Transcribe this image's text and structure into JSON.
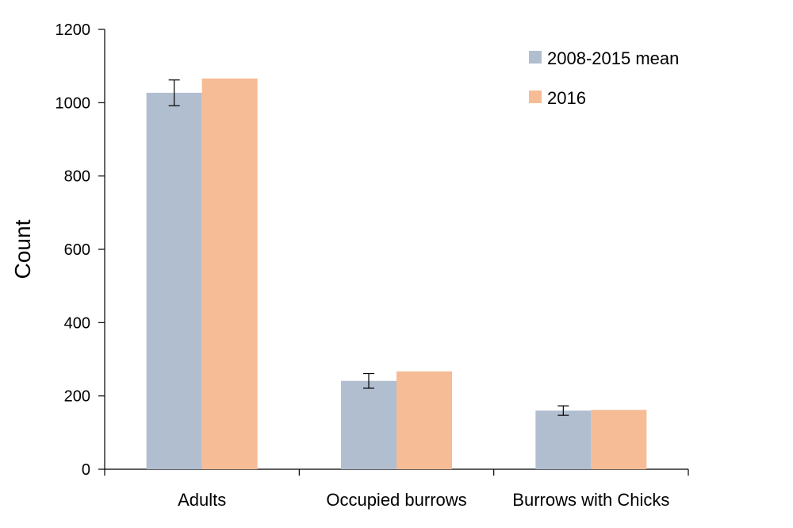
{
  "chart_data": {
    "type": "bar",
    "title": "",
    "xlabel": "",
    "ylabel": "Count",
    "ylim": [
      0,
      1200
    ],
    "yticks": [
      0,
      200,
      400,
      600,
      800,
      1000,
      1200
    ],
    "categories": [
      "Adults",
      "Occupied burrows",
      "Burrows with Chicks"
    ],
    "series": [
      {
        "name": "2008-2015 mean",
        "color": "#b1bed0",
        "values": [
          1027,
          241,
          160
        ],
        "error": [
          35,
          20,
          13
        ]
      },
      {
        "name": "2016",
        "color": "#f5bc96",
        "values": [
          1066,
          267,
          162
        ]
      }
    ],
    "legend_position": "top-right",
    "grid": false
  }
}
